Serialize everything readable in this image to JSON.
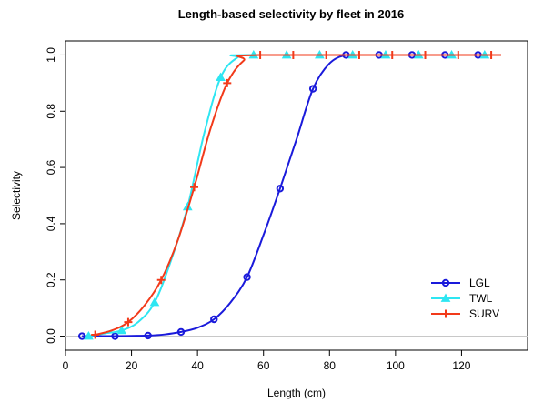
{
  "chart_data": {
    "type": "line",
    "title": "Length-based selectivity by fleet in 2016",
    "xlabel": "Length (cm)",
    "ylabel": "Selectivity",
    "xlim": [
      0,
      140
    ],
    "ylim": [
      -0.05,
      1.05
    ],
    "xticks": [
      0,
      20,
      40,
      60,
      80,
      100,
      120
    ],
    "xtick_labels": [
      "0",
      "20",
      "40",
      "60",
      "80",
      "100",
      "120"
    ],
    "yticks": [
      0.0,
      0.2,
      0.4,
      0.6,
      0.8,
      1.0
    ],
    "ytick_labels": [
      "0.0",
      "0.2",
      "0.4",
      "0.6",
      "0.8",
      "1.0"
    ],
    "reference_lines_y": [
      0,
      1
    ],
    "legend_position": "bottom-right",
    "series": [
      {
        "name": "LGL",
        "color": "#1a1adb",
        "marker": "circle",
        "curve": {
          "x": [
            5,
            10,
            15,
            20,
            25,
            30,
            35,
            40,
            45,
            50,
            55,
            60,
            65,
            70,
            75,
            80,
            85,
            90,
            132
          ],
          "y": [
            0.0,
            0.0,
            0.0,
            0.001,
            0.002,
            0.006,
            0.015,
            0.03,
            0.06,
            0.12,
            0.21,
            0.36,
            0.525,
            0.7,
            0.88,
            0.97,
            1.0,
            1.0,
            1.0
          ]
        },
        "points": {
          "x": [
            5,
            15,
            25,
            35,
            45,
            55,
            65,
            75,
            85,
            95,
            105,
            115,
            125
          ],
          "y": [
            0.0,
            0.0,
            0.002,
            0.015,
            0.06,
            0.21,
            0.525,
            0.88,
            1.0,
            1.0,
            1.0,
            1.0,
            1.0
          ]
        }
      },
      {
        "name": "TWL",
        "color": "#2ee6f2",
        "marker": "triangle",
        "curve": {
          "x": [
            7,
            12,
            17,
            22,
            27,
            32,
            37,
            42,
            47,
            52,
            57,
            132
          ],
          "y": [
            0.0,
            0.01,
            0.02,
            0.05,
            0.12,
            0.27,
            0.46,
            0.72,
            0.92,
            0.99,
            1.0,
            1.0
          ]
        },
        "points": {
          "x": [
            7,
            17,
            27,
            37,
            47,
            57,
            67,
            77,
            87,
            97,
            107,
            117,
            127
          ],
          "y": [
            0.0,
            0.02,
            0.12,
            0.46,
            0.92,
            1.0,
            1.0,
            1.0,
            1.0,
            1.0,
            1.0,
            1.0,
            1.0
          ]
        }
      },
      {
        "name": "SURV",
        "color": "#f23a1a",
        "marker": "plus",
        "curve": {
          "x": [
            9,
            14,
            19,
            24,
            29,
            34,
            39,
            44,
            49,
            54,
            59,
            132
          ],
          "y": [
            0.005,
            0.02,
            0.05,
            0.11,
            0.2,
            0.34,
            0.53,
            0.74,
            0.9,
            0.98,
            1.0,
            1.0
          ]
        },
        "points": {
          "x": [
            9,
            19,
            29,
            39,
            49,
            59,
            69,
            79,
            89,
            99,
            109,
            119,
            129
          ],
          "y": [
            0.005,
            0.05,
            0.2,
            0.53,
            0.9,
            1.0,
            1.0,
            1.0,
            1.0,
            1.0,
            1.0,
            1.0,
            1.0
          ]
        }
      }
    ]
  }
}
